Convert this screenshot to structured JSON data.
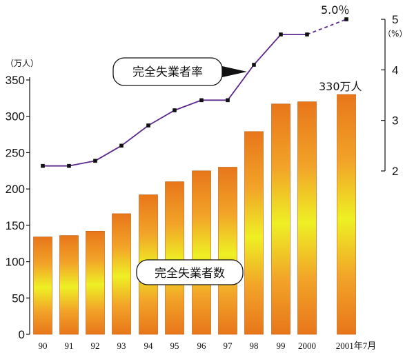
{
  "chart_data": {
    "type": "bar+line",
    "categories": [
      "90",
      "91",
      "92",
      "93",
      "94",
      "95",
      "96",
      "97",
      "98",
      "99",
      "2000",
      "2001年7月"
    ],
    "bar_series": {
      "name": "完全失業者数",
      "values": [
        134,
        136,
        142,
        166,
        192,
        210,
        225,
        230,
        279,
        317,
        320,
        330
      ],
      "ylim": [
        0,
        350
      ],
      "yticks": [
        0,
        50,
        100,
        150,
        200,
        250,
        300,
        350
      ],
      "unit": "（万人）",
      "end_label": "330万人"
    },
    "line_series": {
      "name": "完全失業者率",
      "values": [
        2.1,
        2.1,
        2.2,
        2.5,
        2.9,
        3.2,
        3.4,
        3.4,
        4.1,
        4.7,
        4.7,
        5.0
      ],
      "ylim": [
        2,
        5
      ],
      "yticks": [
        2,
        3,
        4,
        5
      ],
      "unit": "（%）",
      "end_label": "5.0％",
      "dashed_last_segment": true
    },
    "colors": {
      "bar_edge": "#e8761a",
      "bar_mid": "#f0f020",
      "line": "#5a2a8c",
      "marker": "#111111"
    }
  }
}
